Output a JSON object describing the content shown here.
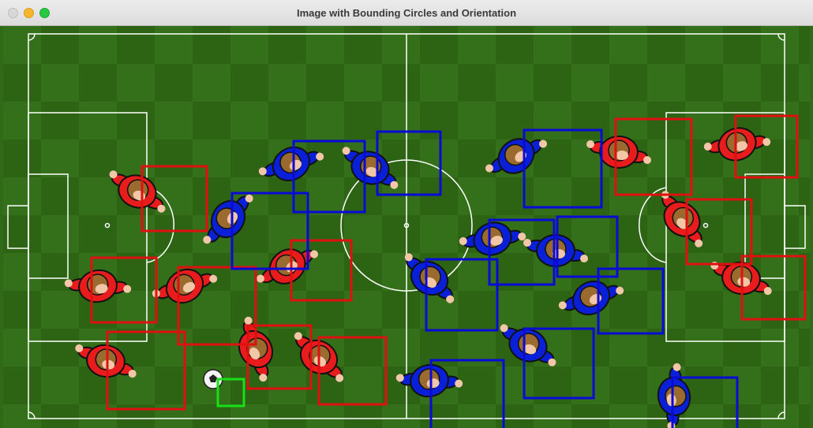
{
  "window": {
    "title": "Image with Bounding Circles and Orientation"
  },
  "colors": {
    "pitch_dark": "#2c6414",
    "pitch_light": "#3b7a1e",
    "lines": "#ffffff",
    "team_red_box": "#e01010",
    "team_blue_box": "#0a0ad6",
    "ball_box": "#18e018",
    "red_kit": "#e81c1c",
    "blue_kit": "#0a20d8",
    "hair": "#9b6a2e",
    "skin": "#f2c7a8"
  },
  "icons": [
    "close-window-icon",
    "minimize-window-icon",
    "maximize-window-icon",
    "soccer-ball-icon"
  ]
}
